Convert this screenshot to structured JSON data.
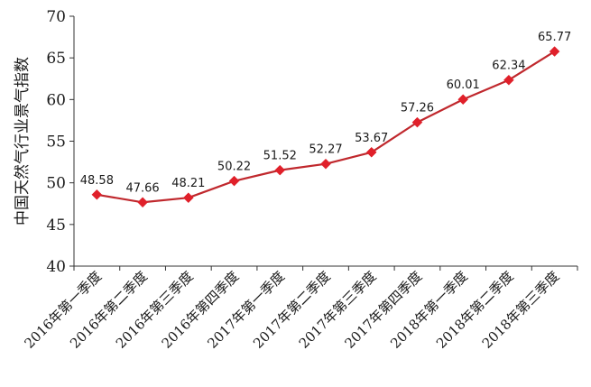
{
  "chart_data": {
    "type": "line",
    "title": "",
    "xlabel": "",
    "ylabel": "中国天然气行业景气指数",
    "ylim": [
      40,
      70
    ],
    "yticks": [
      40,
      45,
      50,
      55,
      60,
      65,
      70
    ],
    "grid": false,
    "legend": "none",
    "categories": [
      "2016年第一季度",
      "2016年第二季度",
      "2016年第三季度",
      "2016年第四季度",
      "2017年第一季度",
      "2017年第二季度",
      "2017年第三季度",
      "2017年第四季度",
      "2018年第一季度",
      "2018年第二季度",
      "2018年第三季度"
    ],
    "series": [
      {
        "color": "#c0282d",
        "marker_color": "#e0202a",
        "values": [
          48.58,
          47.66,
          48.21,
          50.22,
          51.52,
          52.27,
          53.67,
          57.26,
          60.01,
          62.34,
          65.77
        ]
      }
    ],
    "data_labels": [
      "48.58",
      "47.66",
      "48.21",
      "50.22",
      "51.52",
      "52.27",
      "53.67",
      "57.26",
      "60.01",
      "62.34",
      "65.77"
    ]
  }
}
